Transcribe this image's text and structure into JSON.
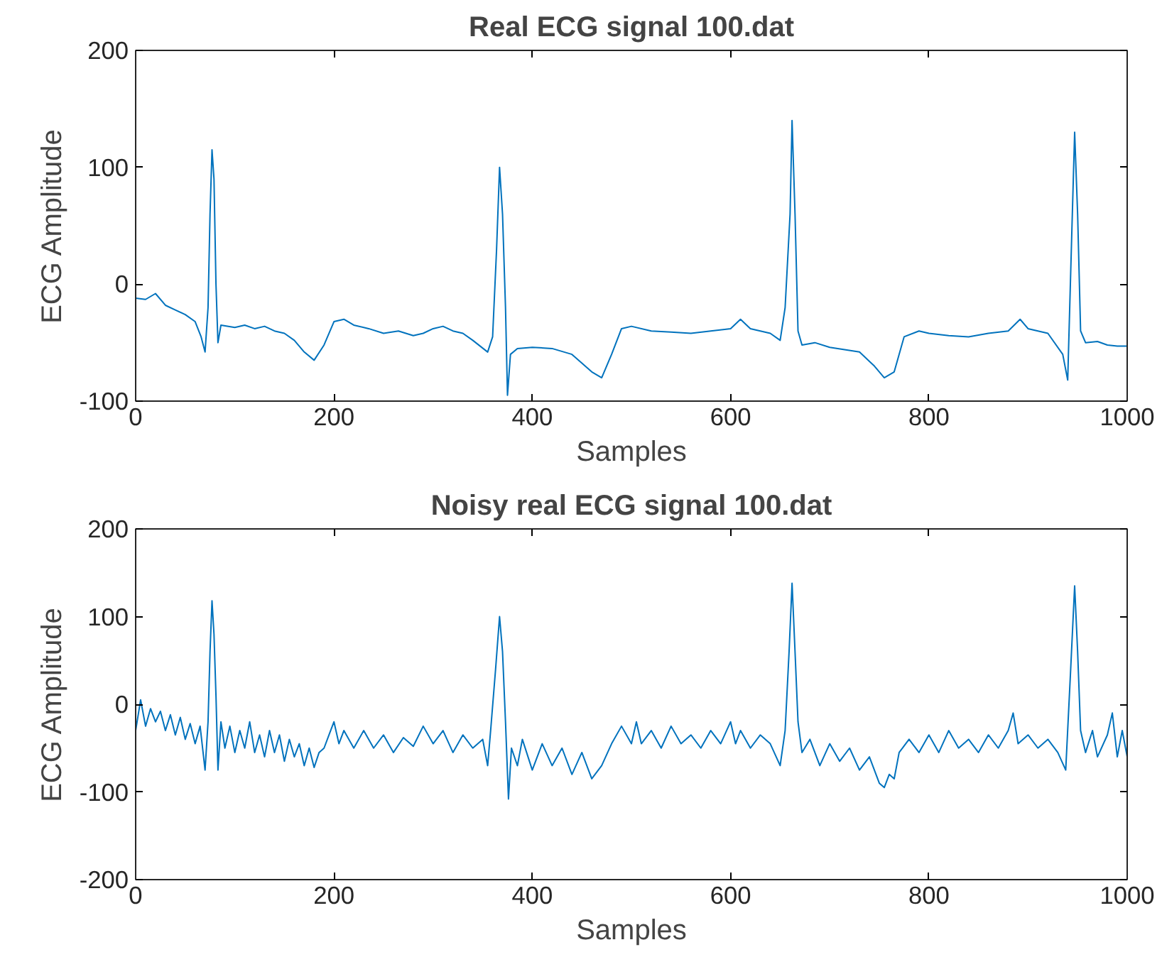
{
  "chart_data": [
    {
      "type": "line",
      "title": "Real ECG signal 100.dat",
      "xlabel": "Samples",
      "ylabel": "ECG Amplitude",
      "xlim": [
        0,
        1000
      ],
      "ylim": [
        -100,
        200
      ],
      "xticks": [
        0,
        200,
        400,
        600,
        800,
        1000
      ],
      "yticks": [
        -100,
        0,
        100,
        200
      ],
      "grid": false,
      "series": [
        {
          "color": "#0072bd",
          "x": [
            0,
            10,
            20,
            30,
            40,
            50,
            60,
            66,
            70,
            73,
            75,
            77,
            79,
            81,
            83,
            86,
            100,
            110,
            120,
            130,
            140,
            150,
            160,
            170,
            180,
            190,
            200,
            210,
            220,
            235,
            250,
            265,
            280,
            290,
            300,
            310,
            320,
            330,
            340,
            355,
            360,
            364,
            367,
            370,
            373,
            375,
            378,
            385,
            400,
            420,
            440,
            460,
            470,
            480,
            490,
            500,
            520,
            540,
            560,
            580,
            600,
            610,
            620,
            640,
            650,
            655,
            660,
            662,
            665,
            668,
            672,
            685,
            700,
            715,
            730,
            745,
            755,
            765,
            775,
            790,
            800,
            820,
            840,
            860,
            880,
            892,
            900,
            920,
            935,
            940,
            944,
            947,
            950,
            953,
            958,
            970,
            980,
            990,
            1000
          ],
          "values": [
            -12,
            -13,
            -8,
            -18,
            -22,
            -26,
            -32,
            -45,
            -58,
            -20,
            60,
            115,
            90,
            0,
            -50,
            -35,
            -37,
            -35,
            -38,
            -36,
            -40,
            -42,
            -48,
            -58,
            -65,
            -52,
            -32,
            -30,
            -35,
            -38,
            -42,
            -40,
            -44,
            -42,
            -38,
            -36,
            -40,
            -42,
            -48,
            -58,
            -45,
            30,
            100,
            60,
            -20,
            -95,
            -60,
            -55,
            -54,
            -55,
            -60,
            -75,
            -80,
            -60,
            -38,
            -36,
            -40,
            -41,
            -42,
            -40,
            -38,
            -30,
            -38,
            -42,
            -48,
            -20,
            60,
            140,
            60,
            -40,
            -52,
            -50,
            -54,
            -56,
            -58,
            -70,
            -80,
            -75,
            -45,
            -40,
            -42,
            -44,
            -45,
            -42,
            -40,
            -30,
            -38,
            -42,
            -60,
            -82,
            40,
            130,
            60,
            -40,
            -50,
            -49,
            -52,
            -53,
            -53
          ]
        }
      ]
    },
    {
      "type": "line",
      "title": "Noisy real ECG signal 100.dat",
      "xlabel": "Samples",
      "ylabel": "ECG Amplitude",
      "xlim": [
        0,
        1000
      ],
      "ylim": [
        -200,
        200
      ],
      "xticks": [
        0,
        200,
        400,
        600,
        800,
        1000
      ],
      "yticks": [
        -200,
        -100,
        0,
        100,
        200
      ],
      "grid": false,
      "series": [
        {
          "color": "#0072bd",
          "x": [
            0,
            5,
            10,
            15,
            20,
            25,
            30,
            35,
            40,
            45,
            50,
            55,
            60,
            65,
            70,
            73,
            75,
            77,
            79,
            81,
            83,
            86,
            90,
            95,
            100,
            105,
            110,
            115,
            120,
            125,
            130,
            135,
            140,
            145,
            150,
            155,
            160,
            165,
            170,
            175,
            180,
            185,
            190,
            195,
            200,
            205,
            210,
            220,
            230,
            240,
            250,
            260,
            270,
            280,
            290,
            300,
            310,
            320,
            330,
            340,
            350,
            355,
            358,
            363,
            367,
            370,
            373,
            376,
            379,
            385,
            390,
            400,
            410,
            420,
            430,
            440,
            450,
            460,
            470,
            480,
            490,
            500,
            505,
            510,
            520,
            530,
            540,
            550,
            560,
            570,
            580,
            590,
            600,
            605,
            610,
            620,
            630,
            640,
            650,
            655,
            659,
            662,
            665,
            668,
            672,
            680,
            690,
            700,
            710,
            720,
            730,
            740,
            750,
            755,
            760,
            765,
            770,
            780,
            790,
            800,
            810,
            820,
            830,
            840,
            850,
            860,
            870,
            880,
            885,
            890,
            900,
            910,
            920,
            930,
            938,
            943,
            947,
            950,
            953,
            958,
            965,
            970,
            980,
            985,
            990,
            995,
            1000
          ],
          "values": [
            -30,
            5,
            -25,
            -5,
            -20,
            -8,
            -30,
            -12,
            -35,
            -15,
            -40,
            -22,
            -45,
            -25,
            -75,
            -20,
            60,
            118,
            80,
            10,
            -75,
            -20,
            -50,
            -25,
            -55,
            -30,
            -50,
            -20,
            -55,
            -35,
            -60,
            -30,
            -55,
            -35,
            -65,
            -40,
            -60,
            -45,
            -70,
            -50,
            -72,
            -55,
            -50,
            -35,
            -20,
            -45,
            -30,
            -50,
            -30,
            -50,
            -35,
            -55,
            -38,
            -48,
            -25,
            -45,
            -30,
            -55,
            -35,
            -50,
            -40,
            -70,
            -30,
            40,
            100,
            60,
            -20,
            -108,
            -50,
            -70,
            -40,
            -75,
            -45,
            -70,
            -50,
            -80,
            -55,
            -85,
            -70,
            -45,
            -25,
            -45,
            -20,
            -45,
            -30,
            -50,
            -25,
            -45,
            -35,
            -50,
            -30,
            -45,
            -20,
            -45,
            -30,
            -50,
            -35,
            -45,
            -70,
            -30,
            60,
            138,
            60,
            -20,
            -55,
            -40,
            -70,
            -45,
            -65,
            -50,
            -75,
            -60,
            -90,
            -95,
            -80,
            -85,
            -55,
            -40,
            -55,
            -35,
            -55,
            -30,
            -50,
            -40,
            -55,
            -35,
            -50,
            -30,
            -10,
            -45,
            -35,
            -50,
            -40,
            -55,
            -75,
            40,
            135,
            60,
            -30,
            -55,
            -30,
            -60,
            -35,
            -10,
            -60,
            -30,
            -60
          ]
        }
      ]
    }
  ]
}
